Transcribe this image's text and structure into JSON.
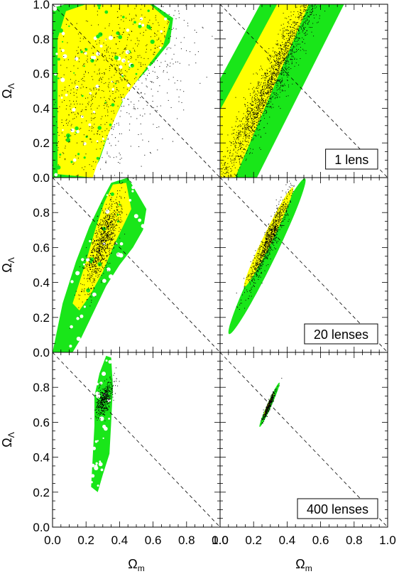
{
  "chart_data": {
    "type": "scatter",
    "xlabel": "Ω",
    "xlabel_sub": "m",
    "ylabel": "Ω",
    "ylabel_sub": "Λ",
    "xlim": [
      0,
      1
    ],
    "ylim": [
      0,
      1
    ],
    "colors": {
      "outer": "#19e619",
      "inner": "#ffff00",
      "points": "#000000",
      "reference": "#000000"
    },
    "reference_line": {
      "style": "dashed",
      "from": [
        0,
        1
      ],
      "to": [
        1,
        0
      ]
    },
    "x_tick_labels": [
      "0.0",
      "0.2",
      "0.4",
      "0.6",
      "0.8",
      "1.0"
    ],
    "y_tick_labels_top": [
      "0.0",
      "0.2",
      "0.4",
      "0.6",
      "0.8",
      "1.0"
    ],
    "y_tick_labels_lower": [
      "0.0",
      "0.2",
      "0.4",
      "0.6",
      "0.8"
    ],
    "rows": [
      {
        "label": "1 lens"
      },
      {
        "label": "20 lenses"
      },
      {
        "label": "400 lenses"
      }
    ],
    "panels": [
      {
        "row": 0,
        "col": 0,
        "noisy": true,
        "outer": [
          [
            0.0,
            0.02
          ],
          [
            0.0,
            0.98
          ],
          [
            0.08,
            1.0
          ],
          [
            0.6,
            1.0
          ],
          [
            0.72,
            0.92
          ],
          [
            0.7,
            0.78
          ],
          [
            0.6,
            0.66
          ],
          [
            0.45,
            0.5
          ],
          [
            0.35,
            0.3
          ],
          [
            0.28,
            0.1
          ],
          [
            0.22,
            0.0
          ],
          [
            0.0,
            0.0
          ]
        ],
        "inner": [
          [
            0.03,
            0.02
          ],
          [
            0.03,
            0.8
          ],
          [
            0.08,
            0.96
          ],
          [
            0.2,
            1.0
          ],
          [
            0.58,
            1.0
          ],
          [
            0.7,
            0.9
          ],
          [
            0.66,
            0.76
          ],
          [
            0.55,
            0.62
          ],
          [
            0.42,
            0.45
          ],
          [
            0.32,
            0.22
          ],
          [
            0.26,
            0.06
          ],
          [
            0.24,
            0.0
          ]
        ],
        "points": {
          "count": 950,
          "cx": 0.35,
          "cy": 0.55,
          "sx": 0.25,
          "sy": 0.3,
          "rho": 0.6
        }
      },
      {
        "row": 0,
        "col": 1,
        "noisy": false,
        "outer": [
          [
            0.0,
            0.0
          ],
          [
            0.0,
            0.57
          ],
          [
            0.24,
            1.0
          ],
          [
            0.74,
            1.0
          ],
          [
            0.22,
            0.0
          ]
        ],
        "inner": [
          [
            0.0,
            0.0
          ],
          [
            0.0,
            0.39
          ],
          [
            0.34,
            1.0
          ],
          [
            0.53,
            1.0
          ],
          [
            0.09,
            0.0
          ]
        ],
        "points": {
          "count": 2000,
          "cx": 0.3,
          "cy": 0.55,
          "sx": 0.18,
          "sy": 0.35,
          "rho": 0.97
        }
      },
      {
        "row": 1,
        "col": 0,
        "noisy": true,
        "outer": [
          [
            0.0,
            0.0
          ],
          [
            0.06,
            0.28
          ],
          [
            0.14,
            0.52
          ],
          [
            0.22,
            0.72
          ],
          [
            0.3,
            0.88
          ],
          [
            0.35,
            0.97
          ],
          [
            0.45,
            1.0
          ],
          [
            0.56,
            0.82
          ],
          [
            0.54,
            0.7
          ],
          [
            0.48,
            0.6
          ],
          [
            0.4,
            0.5
          ],
          [
            0.32,
            0.38
          ],
          [
            0.24,
            0.22
          ],
          [
            0.17,
            0.08
          ],
          [
            0.12,
            0.0
          ]
        ],
        "inner": [
          [
            0.12,
            0.28
          ],
          [
            0.2,
            0.52
          ],
          [
            0.26,
            0.72
          ],
          [
            0.31,
            0.86
          ],
          [
            0.36,
            0.96
          ],
          [
            0.44,
            0.97
          ],
          [
            0.47,
            0.82
          ],
          [
            0.42,
            0.72
          ],
          [
            0.36,
            0.6
          ],
          [
            0.3,
            0.46
          ],
          [
            0.22,
            0.32
          ],
          [
            0.16,
            0.24
          ]
        ],
        "points": {
          "count": 900,
          "cx": 0.3,
          "cy": 0.63,
          "sx": 0.055,
          "sy": 0.13,
          "rho": 0.8
        }
      },
      {
        "row": 1,
        "col": 1,
        "noisy": false,
        "outer": {
          "ellipse": {
            "cx": 0.28,
            "cy": 0.55,
            "a": 0.5,
            "b": 0.045,
            "angle": 63
          }
        },
        "inner": {
          "ellipse": {
            "cx": 0.29,
            "cy": 0.66,
            "a": 0.32,
            "b": 0.028,
            "angle": 63
          }
        },
        "points": {
          "count": 900,
          "cx": 0.29,
          "cy": 0.64,
          "sx": 0.06,
          "sy": 0.13,
          "rho": 0.94
        }
      },
      {
        "row": 2,
        "col": 0,
        "noisy": true,
        "outer": [
          [
            0.23,
            0.23
          ],
          [
            0.24,
            0.4
          ],
          [
            0.25,
            0.58
          ],
          [
            0.25,
            0.75
          ],
          [
            0.28,
            0.88
          ],
          [
            0.32,
            0.98
          ],
          [
            0.35,
            0.97
          ],
          [
            0.36,
            0.8
          ],
          [
            0.35,
            0.6
          ],
          [
            0.34,
            0.42
          ],
          [
            0.3,
            0.3
          ],
          [
            0.27,
            0.2
          ]
        ],
        "inner": [],
        "points": {
          "count": 450,
          "cx": 0.31,
          "cy": 0.74,
          "sx": 0.025,
          "sy": 0.05,
          "rho": 0.6
        }
      },
      {
        "row": 2,
        "col": 1,
        "noisy": false,
        "outer": {
          "ellipse": {
            "cx": 0.295,
            "cy": 0.7,
            "a": 0.14,
            "b": 0.013,
            "angle": 65
          }
        },
        "inner": {
          "ellipse": {
            "cx": 0.29,
            "cy": 0.7,
            "a": 0.07,
            "b": 0.007,
            "angle": 65
          }
        },
        "points": {
          "count": 350,
          "cx": 0.29,
          "cy": 0.7,
          "sx": 0.02,
          "sy": 0.045,
          "rho": 0.95
        }
      }
    ]
  }
}
